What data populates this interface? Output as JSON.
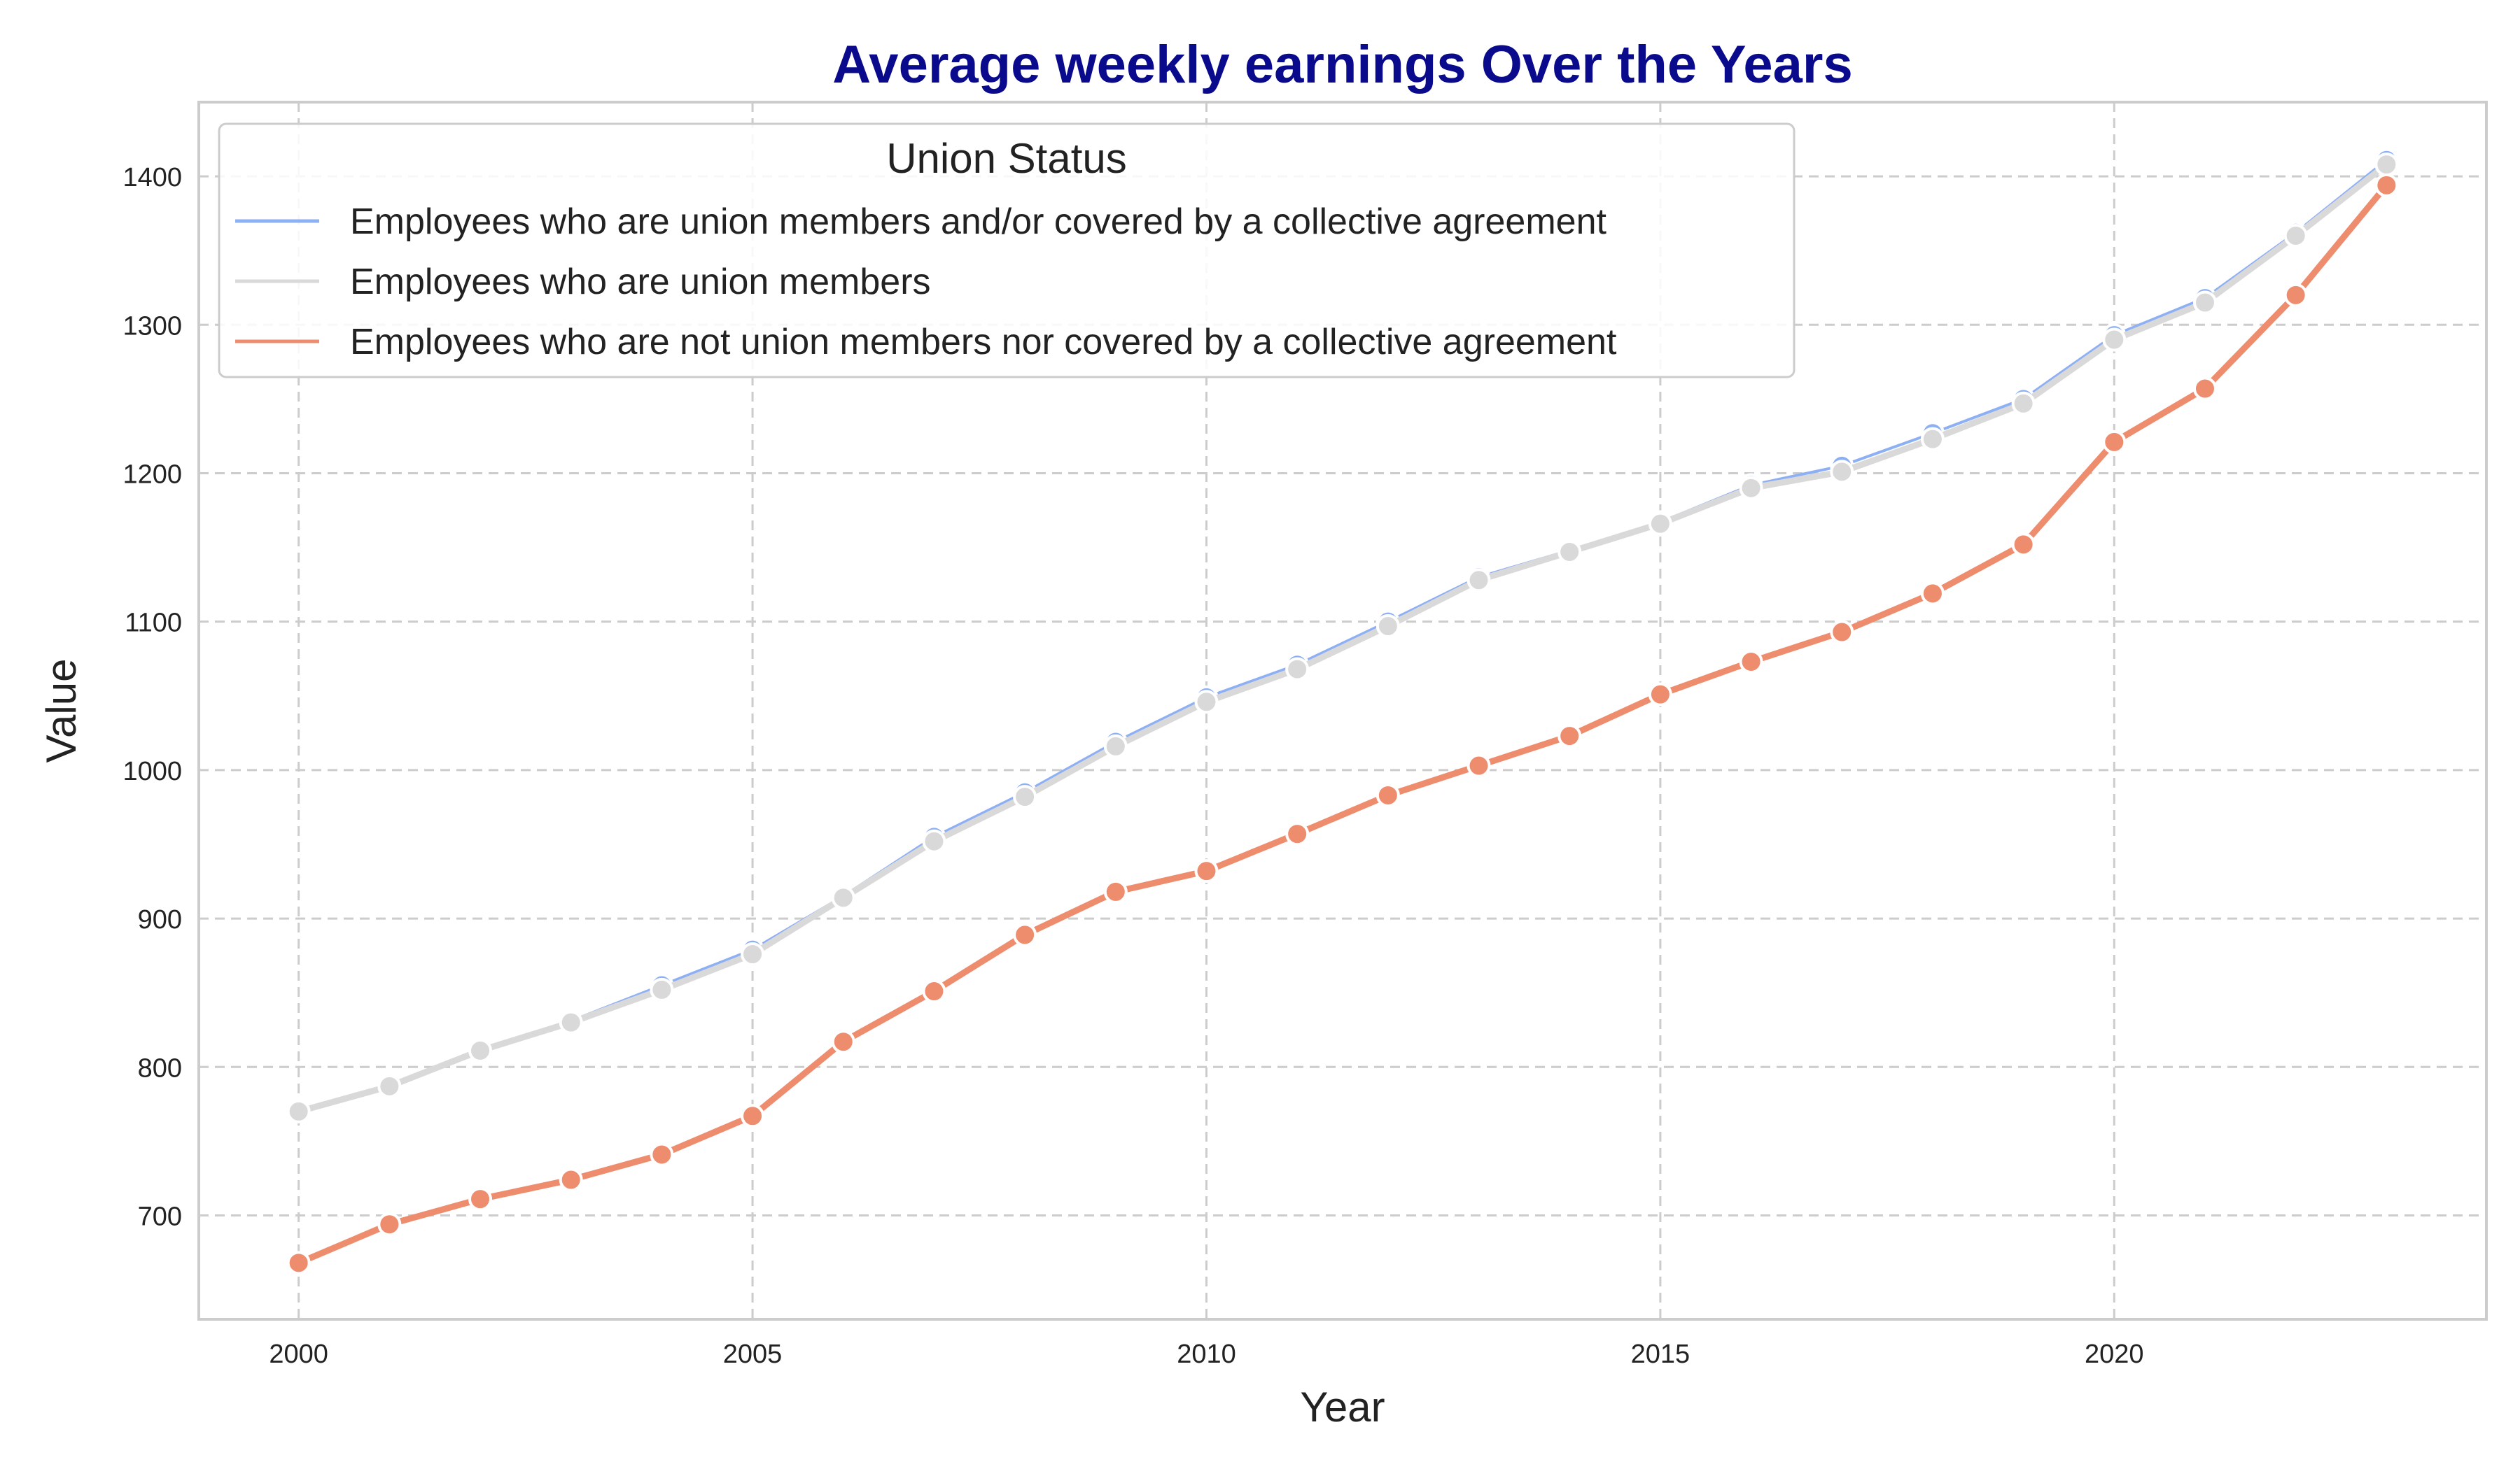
{
  "chart_data": {
    "type": "line",
    "title": "Average weekly earnings Over the Years",
    "xlabel": "Year",
    "ylabel": "Value",
    "xlim": [
      1998.9,
      2024.1
    ],
    "ylim": [
      630,
      1450
    ],
    "xticks": [
      2000,
      2005,
      2010,
      2015,
      2020
    ],
    "yticks": [
      700,
      800,
      900,
      1000,
      1100,
      1200,
      1300,
      1400
    ],
    "grid": true,
    "legend": {
      "title": "Union Status",
      "placement": "top-left"
    },
    "x": [
      2000,
      2001,
      2002,
      2003,
      2004,
      2005,
      2006,
      2007,
      2008,
      2009,
      2010,
      2011,
      2012,
      2013,
      2014,
      2015,
      2016,
      2017,
      2018,
      2019,
      2020,
      2021,
      2022,
      2023
    ],
    "series": [
      {
        "name": "Employees who are union members and/or covered by a collective agreement",
        "color": "#8DAFF4",
        "values": [
          771,
          788,
          812,
          831,
          855,
          879,
          915,
          955,
          985,
          1019,
          1049,
          1071,
          1100,
          1130,
          1148,
          1167,
          1192,
          1205,
          1227,
          1250,
          1293,
          1318,
          1362,
          1411
        ]
      },
      {
        "name": "Employees who are union members",
        "color": "#D9D9D9",
        "values": [
          770,
          787,
          811,
          830,
          852,
          876,
          914,
          952,
          982,
          1016,
          1046,
          1068,
          1097,
          1128,
          1147,
          1166,
          1190,
          1201,
          1223,
          1247,
          1290,
          1315,
          1360,
          1408
        ]
      },
      {
        "name": "Employees who are not union members nor covered by a collective agreement",
        "color": "#EE8C6E",
        "values": [
          668,
          694,
          711,
          724,
          741,
          767,
          817,
          851,
          889,
          918,
          932,
          957,
          983,
          1003,
          1023,
          1051,
          1073,
          1093,
          1119,
          1152,
          1221,
          1257,
          1320,
          1394
        ]
      }
    ]
  }
}
